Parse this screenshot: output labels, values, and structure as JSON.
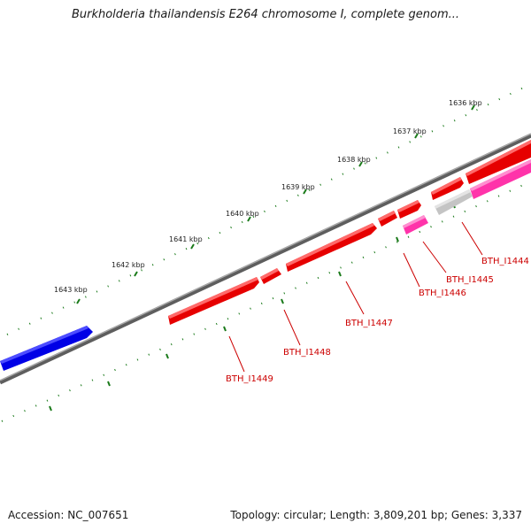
{
  "title": "Burkholderia thailandensis E264 chromosome I, complete genom...",
  "accession_text": "Accession: NC_007651",
  "summary_text": "Topology: circular; Length: 3,809,201 bp; Genes: 3,337",
  "tick_labels": [
    "1636 kbp",
    "1637 kbp",
    "1638 kbp",
    "1639 kbp",
    "1640 kbp",
    "1641 kbp",
    "1642 kbp",
    "1643 kbp"
  ],
  "gene_labels": [
    "BTH_I1444",
    "BTH_I1445",
    "BTH_I1446",
    "BTH_I1447",
    "BTH_I1448",
    "BTH_I1449"
  ],
  "colors": {
    "backbone": "#7a7a7a",
    "tick": "#1a7a1a",
    "forward_gene": "#e60000",
    "reverse_gene": "#ff33aa",
    "reverse_gene_grey": "#c4c4c4",
    "blue_gene": "#0000e6",
    "gene_label": "#cc0000"
  }
}
